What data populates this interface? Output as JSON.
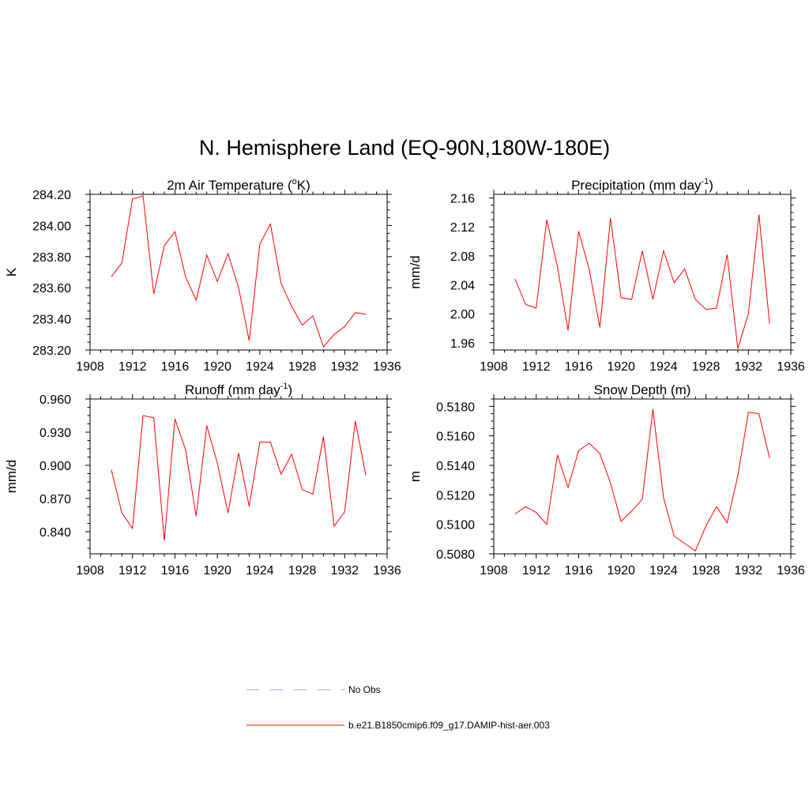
{
  "title": "N. Hemisphere Land (EQ-90N,180W-180E)",
  "legend": [
    {
      "label": "No Obs",
      "color": "#9999ee",
      "dashed": true
    },
    {
      "label": "b.e21.B1850cmip6.f09_g17.DAMIP-hist-aer.003",
      "color": "#ff0000",
      "dashed": false
    }
  ],
  "chart_data": [
    {
      "type": "line",
      "title": "2m Air Temperature (",
      "title_sup": "o",
      "title_after": "K)",
      "ylabel": "K",
      "xlim": [
        1908,
        1936
      ],
      "ylim": [
        283.2,
        284.2
      ],
      "xticks": [
        1908,
        1912,
        1916,
        1920,
        1924,
        1928,
        1932,
        1936
      ],
      "yticks": [
        "283.20",
        "283.40",
        "283.60",
        "283.80",
        "284.00",
        "284.20"
      ],
      "color": "#ff0000",
      "x": [
        1910,
        1911,
        1912,
        1913,
        1914,
        1915,
        1916,
        1917,
        1918,
        1919,
        1920,
        1921,
        1922,
        1923,
        1924,
        1925,
        1926,
        1927,
        1928,
        1929,
        1930,
        1931,
        1932,
        1933,
        1934
      ],
      "y": [
        283.67,
        283.76,
        284.17,
        284.19,
        283.56,
        283.87,
        283.96,
        283.67,
        283.52,
        283.81,
        283.64,
        283.82,
        283.6,
        283.26,
        283.88,
        284.01,
        283.63,
        283.48,
        283.36,
        283.42,
        283.22,
        283.3,
        283.35,
        283.44,
        283.43
      ]
    },
    {
      "type": "line",
      "title": "Precipitation (mm day",
      "title_sup": "-1",
      "title_after": ")",
      "ylabel": "mm/d",
      "xlim": [
        1908,
        1936
      ],
      "ylim": [
        1.95,
        2.165
      ],
      "xticks": [
        1908,
        1912,
        1916,
        1920,
        1924,
        1928,
        1932,
        1936
      ],
      "yticks": [
        "1.96",
        "2.00",
        "2.04",
        "2.08",
        "2.12",
        "2.16"
      ],
      "color": "#ff0000",
      "x": [
        1910,
        1911,
        1912,
        1913,
        1914,
        1915,
        1916,
        1917,
        1918,
        1919,
        1920,
        1921,
        1922,
        1923,
        1924,
        1925,
        1926,
        1927,
        1928,
        1929,
        1930,
        1931,
        1932,
        1933,
        1934
      ],
      "y": [
        2.048,
        2.013,
        2.008,
        2.13,
        2.065,
        1.977,
        2.114,
        2.061,
        1.981,
        2.132,
        2.022,
        2.02,
        2.087,
        2.02,
        2.087,
        2.043,
        2.062,
        2.02,
        2.006,
        2.008,
        2.082,
        1.952,
        2.0,
        2.137,
        1.986
      ]
    },
    {
      "type": "line",
      "title": "Runoff (mm day",
      "title_sup": "-1",
      "title_after": ")",
      "ylabel": "mm/d",
      "xlim": [
        1908,
        1936
      ],
      "ylim": [
        0.82,
        0.96
      ],
      "xticks": [
        1908,
        1912,
        1916,
        1920,
        1924,
        1928,
        1932,
        1936
      ],
      "yticks": [
        "0.840",
        "0.870",
        "0.900",
        "0.930",
        "0.960"
      ],
      "color": "#ff0000",
      "x": [
        1910,
        1911,
        1912,
        1913,
        1914,
        1915,
        1916,
        1917,
        1918,
        1919,
        1920,
        1921,
        1922,
        1923,
        1924,
        1925,
        1926,
        1927,
        1928,
        1929,
        1930,
        1931,
        1932,
        1933,
        1934
      ],
      "y": [
        0.896,
        0.857,
        0.843,
        0.945,
        0.943,
        0.832,
        0.942,
        0.914,
        0.854,
        0.936,
        0.902,
        0.857,
        0.911,
        0.863,
        0.921,
        0.921,
        0.892,
        0.91,
        0.878,
        0.874,
        0.926,
        0.845,
        0.858,
        0.94,
        0.891
      ]
    },
    {
      "type": "line",
      "title": "Snow Depth (m)",
      "title_sup": "",
      "title_after": "",
      "ylabel": "m",
      "xlim": [
        1908,
        1936
      ],
      "ylim": [
        0.508,
        0.5185
      ],
      "xticks": [
        1908,
        1912,
        1916,
        1920,
        1924,
        1928,
        1932,
        1936
      ],
      "yticks": [
        "0.5080",
        "0.5100",
        "0.5120",
        "0.5140",
        "0.5160",
        "0.5180"
      ],
      "color": "#ff0000",
      "x": [
        1910,
        1911,
        1912,
        1913,
        1914,
        1915,
        1916,
        1917,
        1918,
        1919,
        1920,
        1921,
        1922,
        1923,
        1924,
        1925,
        1926,
        1927,
        1928,
        1929,
        1930,
        1931,
        1932,
        1933,
        1934
      ],
      "y": [
        0.5107,
        0.5112,
        0.5108,
        0.51,
        0.5147,
        0.5125,
        0.515,
        0.5155,
        0.5148,
        0.5128,
        0.5102,
        0.5109,
        0.5117,
        0.5178,
        0.5118,
        0.5092,
        0.5087,
        0.5082,
        0.5099,
        0.5112,
        0.5101,
        0.5133,
        0.5176,
        0.5175,
        0.5145
      ]
    }
  ]
}
